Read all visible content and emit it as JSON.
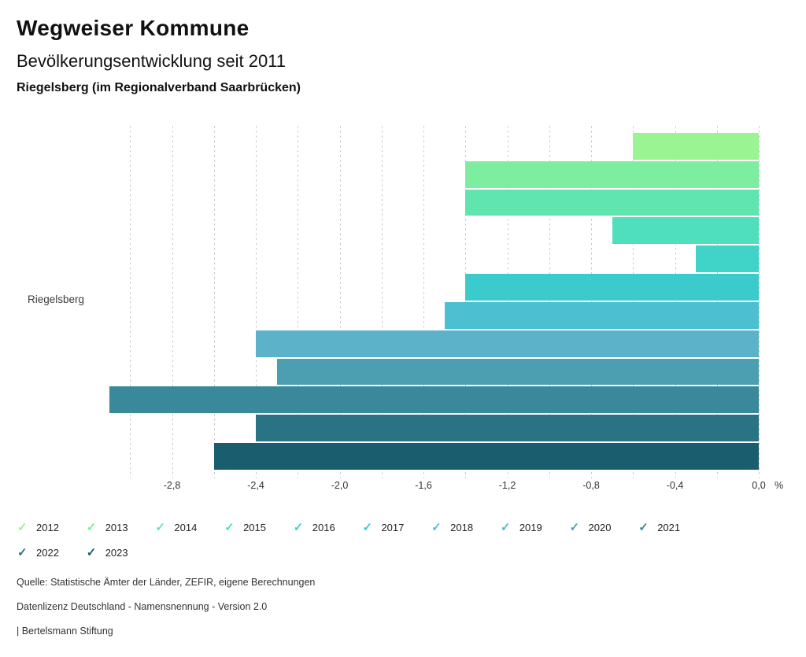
{
  "header": {
    "title": "Wegweiser Kommune",
    "subtitle": "Bevölkerungsentwicklung seit 2011",
    "region": "Riegelsberg (im Regionalverband Saarbrücken)"
  },
  "chart_data": {
    "type": "bar",
    "orientation": "horizontal",
    "title": "Bevölkerungsentwicklung seit 2011",
    "row_label": "Riegelsberg",
    "unit": "%",
    "xlim": [
      -3.11,
      0
    ],
    "grid_start": -3.0,
    "gridline_step": 0.2,
    "categories": [
      "2012",
      "2013",
      "2014",
      "2015",
      "2016",
      "2017",
      "2018",
      "2019",
      "2020",
      "2021",
      "2022",
      "2023"
    ],
    "values": [
      -0.6,
      -1.4,
      -1.4,
      -0.7,
      -0.3,
      -1.4,
      -1.5,
      -2.4,
      -2.3,
      -3.1,
      -2.4,
      -2.6
    ],
    "colors": [
      "#9BF492",
      "#7DEDA0",
      "#5FE5AD",
      "#4FDFBC",
      "#3FD4C7",
      "#3CCBCD",
      "#4CBFD0",
      "#5CB3C9",
      "#4C9FB0",
      "#3A899B",
      "#2A7384",
      "#1A5D6E"
    ],
    "x_ticks": [
      {
        "value": -2.8,
        "label": "-2,8"
      },
      {
        "value": -2.4,
        "label": "-2,4"
      },
      {
        "value": -2.0,
        "label": "-2,0"
      },
      {
        "value": -1.6,
        "label": "-1,6"
      },
      {
        "value": -1.2,
        "label": "-1,2"
      },
      {
        "value": -0.8,
        "label": "-0,8"
      },
      {
        "value": -0.4,
        "label": "-0,4"
      },
      {
        "value": 0.0,
        "label": "0,0"
      }
    ],
    "axis_unit_label": "%",
    "legend_check_glyph": "✓"
  },
  "footer": {
    "source": "Quelle: Statistische Ämter der Länder, ZEFIR, eigene Berechnungen",
    "license": "Datenlizenz Deutschland - Namensnennung - Version 2.0",
    "brand": "| Bertelsmann Stiftung"
  }
}
